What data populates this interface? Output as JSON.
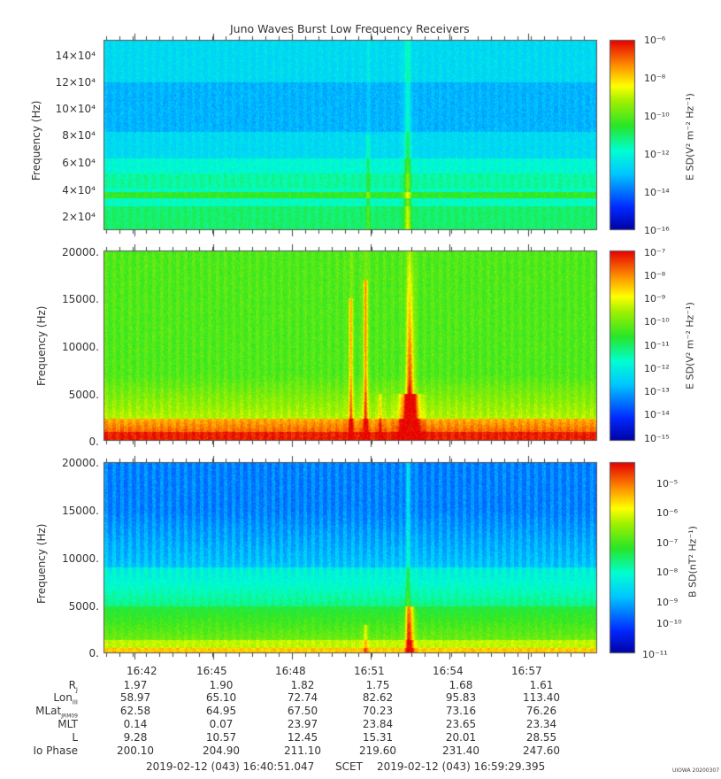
{
  "chart_data": [
    {
      "type": "heatmap",
      "title": "Juno Waves Burst Low Frequency Receivers",
      "ylabel": "Frequency (Hz)",
      "y_ticks": [
        "2×10⁴",
        "4×10⁴",
        "6×10⁴",
        "8×10⁴",
        "10×10⁴",
        "12×10⁴",
        "14×10⁴"
      ],
      "y_tick_values": [
        20000,
        40000,
        60000,
        80000,
        100000,
        120000,
        140000
      ],
      "ylim": [
        12000,
        150000
      ],
      "colorbar_label": "E SD(V² m⁻² Hz⁻¹)",
      "colorbar_ticks": [
        "10⁻⁶",
        "10⁻⁸",
        "10⁻¹⁰",
        "10⁻¹²",
        "10⁻¹⁴",
        "10⁻¹⁶"
      ],
      "colorbar_range": [
        -16,
        -6
      ]
    },
    {
      "type": "heatmap",
      "ylabel": "Frequency (Hz)",
      "y_ticks": [
        "20000.",
        "15000.",
        "10000.",
        "5000.",
        "0."
      ],
      "y_tick_values": [
        20000,
        15000,
        10000,
        5000,
        0
      ],
      "ylim": [
        0,
        20000
      ],
      "colorbar_label": "E SD(V² m⁻² Hz⁻¹)",
      "colorbar_ticks": [
        "10⁻⁷",
        "10⁻⁸",
        "10⁻⁹",
        "10⁻¹⁰",
        "10⁻¹¹",
        "10⁻¹²",
        "10⁻¹³",
        "10⁻¹⁴",
        "10⁻¹⁵"
      ],
      "colorbar_range": [
        -15,
        -7
      ]
    },
    {
      "type": "heatmap",
      "ylabel": "Frequency (Hz)",
      "y_ticks": [
        "20000.",
        "15000.",
        "10000.",
        "5000.",
        "0."
      ],
      "y_tick_values": [
        20000,
        15000,
        10000,
        5000,
        0
      ],
      "ylim": [
        0,
        20000
      ],
      "colorbar_label": "B SD(nT² Hz⁻¹)",
      "colorbar_ticks": [
        "10⁻⁵",
        "10⁻⁶",
        "10⁻⁷",
        "10⁻⁸",
        "10⁻⁹",
        "10⁻¹⁰",
        "10⁻¹¹"
      ],
      "colorbar_range": [
        -11,
        -4.6
      ]
    }
  ],
  "x_axis": {
    "ticks": [
      "16:42",
      "16:45",
      "16:48",
      "16:51",
      "16:54",
      "16:57"
    ],
    "tick_minutes": [
      1.15,
      4.15,
      7.15,
      10.15,
      13.15,
      16.15
    ],
    "xlim_minutes": [
      0,
      18.64
    ]
  },
  "ephemeris": {
    "rows": [
      {
        "label": "R",
        "sub": "J",
        "values": [
          "1.97",
          "1.90",
          "1.82",
          "1.75",
          "1.68",
          "1.61"
        ]
      },
      {
        "label": "Lon",
        "sub": "III",
        "values": [
          "58.97",
          "65.10",
          "72.74",
          "82.62",
          "95.83",
          "113.40"
        ]
      },
      {
        "label": "MLat",
        "sub": "JRM09",
        "values": [
          "62.58",
          "64.95",
          "67.50",
          "70.23",
          "73.16",
          "76.26"
        ]
      },
      {
        "label": "MLT",
        "sub": "",
        "values": [
          "0.14",
          "0.07",
          "23.97",
          "23.84",
          "23.65",
          "23.34"
        ]
      },
      {
        "label": "L",
        "sub": "",
        "values": [
          "9.28",
          "10.57",
          "12.45",
          "15.31",
          "20.01",
          "28.55"
        ]
      },
      {
        "label": "Io Phase",
        "sub": "",
        "values": [
          "200.10",
          "204.90",
          "211.10",
          "219.60",
          "231.40",
          "247.60"
        ]
      }
    ]
  },
  "footer": {
    "start": "2019-02-12 (043) 16:40:51.047",
    "mid": "SCET",
    "end": "2019-02-12 (043) 16:59:29.395"
  },
  "stamp": "UIOWA 20200307"
}
